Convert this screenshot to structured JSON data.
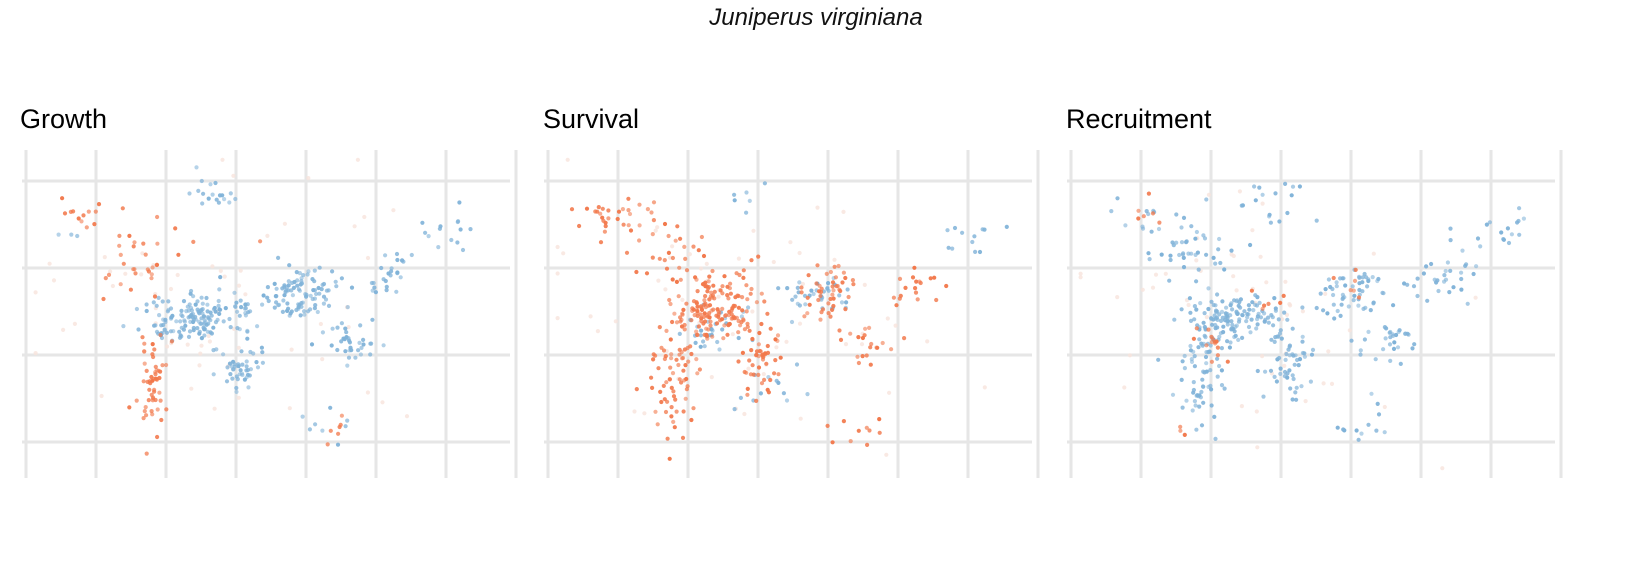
{
  "title": "Juniperus virginiana",
  "colors": {
    "positive": "#7fb2d8",
    "negative": "#f2784b",
    "neutral": "#f7e4dc",
    "grid": "#e6e6e6"
  },
  "chart_data": [
    {
      "type": "scatter",
      "title": "Growth",
      "xlabel": "",
      "ylabel": "",
      "axes": "hidden (map panel, gridlines only)",
      "grid": true,
      "clusters": [
        {
          "color": "positive",
          "center": [
            0.34,
            0.51
          ],
          "spread": [
            0.05,
            0.035
          ],
          "count": 140
        },
        {
          "color": "positive",
          "center": [
            0.575,
            0.44
          ],
          "spread": [
            0.035,
            0.04
          ],
          "count": 90
        },
        {
          "color": "positive",
          "center": [
            0.47,
            0.47
          ],
          "spread": [
            0.04,
            0.02
          ],
          "count": 25
        },
        {
          "color": "positive",
          "center": [
            0.44,
            0.66
          ],
          "spread": [
            0.025,
            0.05
          ],
          "count": 45
        },
        {
          "color": "positive",
          "center": [
            0.67,
            0.59
          ],
          "spread": [
            0.03,
            0.035
          ],
          "count": 35
        },
        {
          "color": "positive",
          "center": [
            0.755,
            0.38
          ],
          "spread": [
            0.035,
            0.03
          ],
          "count": 25
        },
        {
          "color": "positive",
          "center": [
            0.39,
            0.14
          ],
          "spread": [
            0.03,
            0.03
          ],
          "count": 18
        },
        {
          "color": "positive",
          "center": [
            0.87,
            0.26
          ],
          "spread": [
            0.05,
            0.03
          ],
          "count": 14
        },
        {
          "color": "positive",
          "center": [
            0.62,
            0.83
          ],
          "spread": [
            0.03,
            0.03
          ],
          "count": 8
        },
        {
          "color": "positive",
          "center": [
            0.09,
            0.26
          ],
          "spread": [
            0.01,
            0.01
          ],
          "count": 3
        },
        {
          "color": "negative",
          "center": [
            0.26,
            0.73
          ],
          "spread": [
            0.015,
            0.07
          ],
          "count": 55
        },
        {
          "color": "negative",
          "center": [
            0.25,
            0.35
          ],
          "spread": [
            0.05,
            0.07
          ],
          "count": 30
        },
        {
          "color": "negative",
          "center": [
            0.14,
            0.19
          ],
          "spread": [
            0.04,
            0.03
          ],
          "count": 14
        },
        {
          "color": "negative",
          "center": [
            0.64,
            0.86
          ],
          "spread": [
            0.02,
            0.02
          ],
          "count": 6
        },
        {
          "color": "neutral",
          "center": [
            0.4,
            0.5
          ],
          "spread": [
            0.2,
            0.2
          ],
          "count": 60
        }
      ]
    },
    {
      "type": "scatter",
      "title": "Survival",
      "xlabel": "",
      "ylabel": "",
      "axes": "hidden (map panel, gridlines only)",
      "grid": true,
      "clusters": [
        {
          "color": "negative",
          "center": [
            0.34,
            0.51
          ],
          "spread": [
            0.05,
            0.035
          ],
          "count": 110
        },
        {
          "color": "negative",
          "center": [
            0.36,
            0.42
          ],
          "spread": [
            0.04,
            0.04
          ],
          "count": 50
        },
        {
          "color": "negative",
          "center": [
            0.265,
            0.69
          ],
          "spread": [
            0.025,
            0.08
          ],
          "count": 70
        },
        {
          "color": "negative",
          "center": [
            0.44,
            0.64
          ],
          "spread": [
            0.025,
            0.05
          ],
          "count": 45
        },
        {
          "color": "negative",
          "center": [
            0.58,
            0.43
          ],
          "spread": [
            0.03,
            0.04
          ],
          "count": 45
        },
        {
          "color": "negative",
          "center": [
            0.13,
            0.2
          ],
          "spread": [
            0.05,
            0.04
          ],
          "count": 30
        },
        {
          "color": "negative",
          "center": [
            0.25,
            0.3
          ],
          "spread": [
            0.04,
            0.05
          ],
          "count": 25
        },
        {
          "color": "negative",
          "center": [
            0.67,
            0.59
          ],
          "spread": [
            0.03,
            0.035
          ],
          "count": 20
        },
        {
          "color": "negative",
          "center": [
            0.76,
            0.42
          ],
          "spread": [
            0.03,
            0.03
          ],
          "count": 18
        },
        {
          "color": "negative",
          "center": [
            0.64,
            0.86
          ],
          "spread": [
            0.03,
            0.02
          ],
          "count": 10
        },
        {
          "color": "positive",
          "center": [
            0.56,
            0.44
          ],
          "spread": [
            0.035,
            0.03
          ],
          "count": 35
        },
        {
          "color": "positive",
          "center": [
            0.34,
            0.54
          ],
          "spread": [
            0.05,
            0.04
          ],
          "count": 30
        },
        {
          "color": "positive",
          "center": [
            0.87,
            0.26
          ],
          "spread": [
            0.05,
            0.03
          ],
          "count": 12
        },
        {
          "color": "positive",
          "center": [
            0.45,
            0.72
          ],
          "spread": [
            0.04,
            0.04
          ],
          "count": 12
        },
        {
          "color": "positive",
          "center": [
            0.42,
            0.14
          ],
          "spread": [
            0.03,
            0.03
          ],
          "count": 6
        },
        {
          "color": "neutral",
          "center": [
            0.4,
            0.5
          ],
          "spread": [
            0.2,
            0.2
          ],
          "count": 60
        }
      ]
    },
    {
      "type": "scatter",
      "title": "Recruitment",
      "xlabel": "",
      "ylabel": "",
      "axes": "hidden (map panel, gridlines only)",
      "grid": true,
      "clusters": [
        {
          "color": "positive",
          "center": [
            0.34,
            0.51
          ],
          "spread": [
            0.05,
            0.035
          ],
          "count": 130
        },
        {
          "color": "positive",
          "center": [
            0.27,
            0.68
          ],
          "spread": [
            0.025,
            0.08
          ],
          "count": 70
        },
        {
          "color": "positive",
          "center": [
            0.45,
            0.65
          ],
          "spread": [
            0.03,
            0.05
          ],
          "count": 50
        },
        {
          "color": "positive",
          "center": [
            0.58,
            0.44
          ],
          "spread": [
            0.035,
            0.04
          ],
          "count": 55
        },
        {
          "color": "positive",
          "center": [
            0.25,
            0.3
          ],
          "spread": [
            0.05,
            0.05
          ],
          "count": 40
        },
        {
          "color": "positive",
          "center": [
            0.67,
            0.58
          ],
          "spread": [
            0.03,
            0.035
          ],
          "count": 30
        },
        {
          "color": "positive",
          "center": [
            0.77,
            0.4
          ],
          "spread": [
            0.04,
            0.035
          ],
          "count": 30
        },
        {
          "color": "positive",
          "center": [
            0.88,
            0.26
          ],
          "spread": [
            0.05,
            0.03
          ],
          "count": 18
        },
        {
          "color": "positive",
          "center": [
            0.42,
            0.15
          ],
          "spread": [
            0.04,
            0.04
          ],
          "count": 18
        },
        {
          "color": "positive",
          "center": [
            0.62,
            0.83
          ],
          "spread": [
            0.03,
            0.03
          ],
          "count": 12
        },
        {
          "color": "positive",
          "center": [
            0.13,
            0.2
          ],
          "spread": [
            0.04,
            0.03
          ],
          "count": 12
        },
        {
          "color": "negative",
          "center": [
            0.29,
            0.59
          ],
          "spread": [
            0.02,
            0.03
          ],
          "count": 14
        },
        {
          "color": "negative",
          "center": [
            0.41,
            0.45
          ],
          "spread": [
            0.02,
            0.02
          ],
          "count": 6
        },
        {
          "color": "negative",
          "center": [
            0.6,
            0.41
          ],
          "spread": [
            0.02,
            0.02
          ],
          "count": 6
        },
        {
          "color": "negative",
          "center": [
            0.16,
            0.2
          ],
          "spread": [
            0.04,
            0.02
          ],
          "count": 6
        },
        {
          "color": "negative",
          "center": [
            0.23,
            0.85
          ],
          "spread": [
            0.01,
            0.01
          ],
          "count": 3
        },
        {
          "color": "neutral",
          "center": [
            0.4,
            0.5
          ],
          "spread": [
            0.2,
            0.2
          ],
          "count": 50
        }
      ]
    }
  ]
}
